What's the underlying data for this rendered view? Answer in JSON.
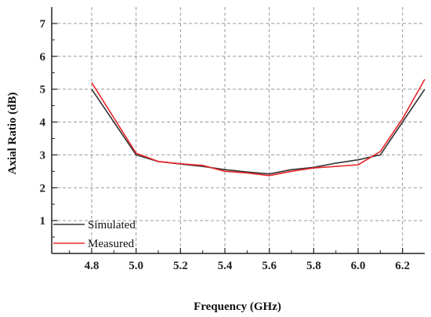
{
  "chart_data": {
    "type": "line",
    "xlabel": "Frequency (GHz)",
    "ylabel": "Axial Ratio (dB)",
    "xlim": [
      4.62,
      6.3
    ],
    "ylim": [
      0,
      7.5
    ],
    "xticks": [
      4.8,
      5.0,
      5.2,
      5.4,
      5.6,
      5.8,
      6.0,
      6.2
    ],
    "xtick_labels": [
      "4.8",
      "5.0",
      "5.2",
      "5.4",
      "5.6",
      "5.8",
      "6.0",
      "6.2"
    ],
    "yticks": [
      1,
      2,
      3,
      4,
      5,
      6,
      7
    ],
    "ytick_labels": [
      "1",
      "2",
      "3",
      "4",
      "5",
      "6",
      "7"
    ],
    "grid": true,
    "legend_position": "bottom-left",
    "series": [
      {
        "name": "Simulated",
        "color": "#333333",
        "x": [
          4.8,
          5.0,
          5.1,
          5.2,
          5.3,
          5.4,
          5.5,
          5.6,
          5.7,
          5.8,
          5.9,
          6.0,
          6.1,
          6.2,
          6.3
        ],
        "y": [
          5.0,
          3.0,
          2.8,
          2.72,
          2.65,
          2.55,
          2.48,
          2.42,
          2.55,
          2.62,
          2.75,
          2.85,
          3.0,
          4.0,
          5.0
        ]
      },
      {
        "name": "Measured",
        "color": "#e8262a",
        "x": [
          4.8,
          5.0,
          5.1,
          5.2,
          5.3,
          5.4,
          5.5,
          5.6,
          5.7,
          5.8,
          5.9,
          6.0,
          6.1,
          6.2,
          6.3
        ],
        "y": [
          5.2,
          3.05,
          2.8,
          2.73,
          2.68,
          2.5,
          2.45,
          2.37,
          2.5,
          2.6,
          2.65,
          2.7,
          3.1,
          4.1,
          5.3
        ]
      }
    ]
  }
}
